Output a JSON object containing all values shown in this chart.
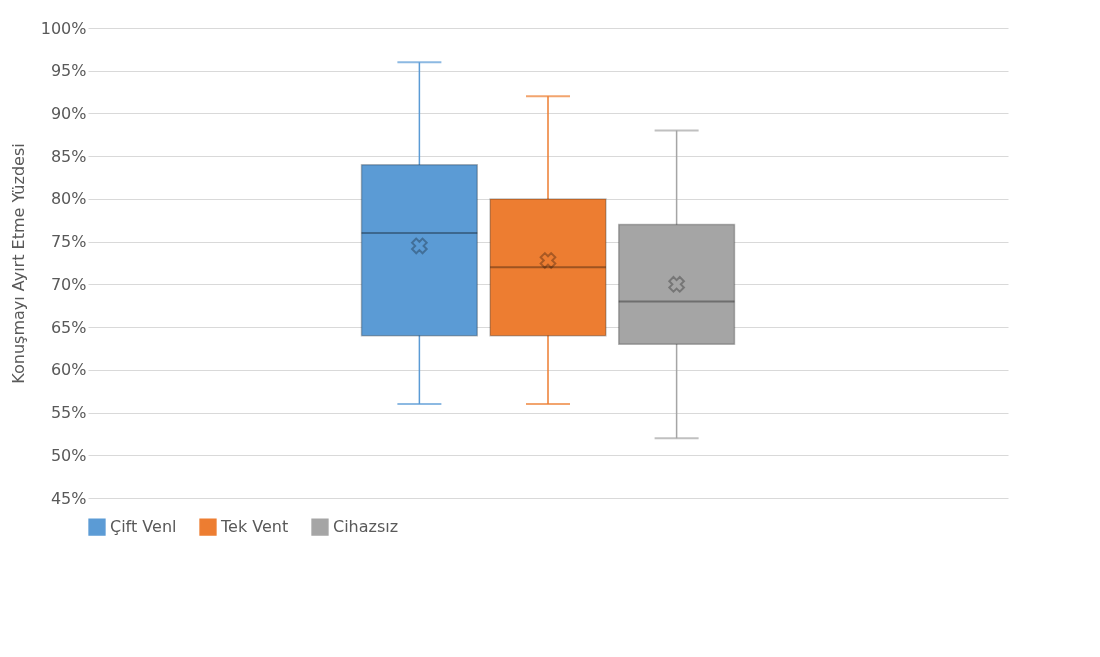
{
  "chart_data": {
    "type": "box",
    "ylabel": "Konuşmayı Ayırt Etme Yüzdesi",
    "categories": [
      null
    ],
    "series": [
      {
        "name": "Çift Venl",
        "color": "#5b9bd5",
        "boxes": [
          {
            "low": 56,
            "q1": 64,
            "median": 76,
            "q3": 84,
            "high": 96,
            "mean": 74.5
          }
        ]
      },
      {
        "name": "Tek Vent",
        "color": "#ed7d31",
        "boxes": [
          {
            "low": 56,
            "q1": 64,
            "median": 72,
            "q3": 80,
            "high": 92,
            "mean": 72.8
          }
        ]
      },
      {
        "name": "Cihazsız",
        "color": "#a5a5a5",
        "boxes": [
          {
            "low": 52,
            "q1": 63,
            "median": 68,
            "q3": 77,
            "high": 88,
            "mean": 70
          }
        ]
      }
    ],
    "ylim": [
      45,
      100
    ],
    "yticks": [
      {
        "value": 45,
        "label": "45%"
      },
      {
        "value": 50,
        "label": "50%"
      },
      {
        "value": 55,
        "label": "55%"
      },
      {
        "value": 60,
        "label": "60%"
      },
      {
        "value": 65,
        "label": "65%"
      },
      {
        "value": 70,
        "label": "70%"
      },
      {
        "value": 75,
        "label": "75%"
      },
      {
        "value": 80,
        "label": "80%"
      },
      {
        "value": 85,
        "label": "85%"
      },
      {
        "value": 90,
        "label": "90%"
      },
      {
        "value": 95,
        "label": "95%"
      },
      {
        "value": 100,
        "label": "100%"
      }
    ],
    "grid": "y",
    "legend": "bottom",
    "marker": "cross"
  }
}
